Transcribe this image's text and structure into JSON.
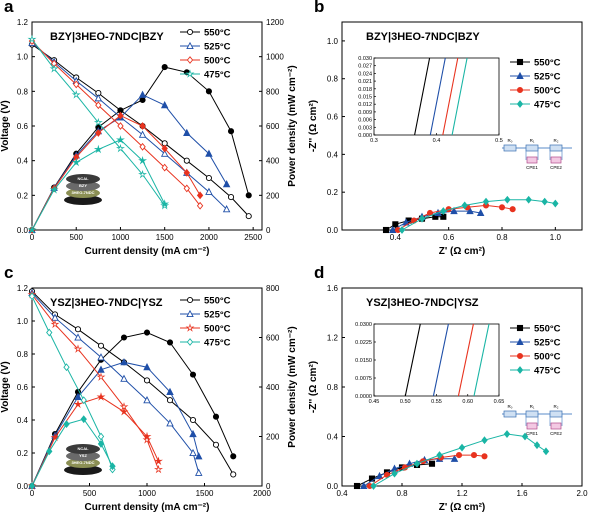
{
  "chart_data": [
    {
      "panel": "a",
      "type": "line",
      "title": "BZY|3HEO-7NDC|BZY",
      "xlabel": "Current density (mA cm⁻²)",
      "ylabel": "Voltage (V)",
      "y2label": "Power density (mW cm⁻²)",
      "xlim": [
        0,
        2600
      ],
      "ylim": [
        0,
        1.2
      ],
      "y2lim": [
        0,
        1200
      ],
      "xticks": [
        "0",
        "500",
        "1000",
        "1500",
        "2000",
        "2500"
      ],
      "yticks": [
        "0.0",
        "0.2",
        "0.4",
        "0.6",
        "0.8",
        "1.0",
        "1.2"
      ],
      "y2ticks": [
        "0",
        "200",
        "400",
        "600",
        "800",
        "1000",
        "1200"
      ],
      "legend_position": "top-right",
      "inset_labels": [
        "NCAL",
        "BZY",
        "3HEO-7NDC"
      ],
      "series": [
        {
          "name": "550°C",
          "color": "#000000",
          "marker": "circle",
          "voltage": {
            "x": [
              0,
              250,
              500,
              750,
              1000,
              1250,
              1500,
              1750,
              2000,
              2250,
              2450
            ],
            "y": [
              1.07,
              0.98,
              0.88,
              0.79,
              0.69,
              0.6,
              0.5,
              0.4,
              0.3,
              0.19,
              0.08
            ]
          },
          "power": {
            "x": [
              0,
              250,
              500,
              750,
              1000,
              1250,
              1500,
              1750,
              2000,
              2250,
              2450
            ],
            "y": [
              0,
              245,
              440,
              593,
              690,
              750,
              940,
              910,
              800,
              570,
              200
            ]
          }
        },
        {
          "name": "525°C",
          "color": "#1f4fa8",
          "marker": "triangle",
          "voltage": {
            "x": [
              0,
              250,
              500,
              750,
              1000,
              1250,
              1500,
              1750,
              2000,
              2200
            ],
            "y": [
              1.08,
              0.97,
              0.86,
              0.76,
              0.65,
              0.55,
              0.44,
              0.33,
              0.22,
              0.12
            ]
          },
          "power": {
            "x": [
              0,
              250,
              500,
              750,
              1000,
              1250,
              1500,
              1750,
              2000,
              2200
            ],
            "y": [
              0,
              243,
              430,
              570,
              650,
              780,
              720,
              560,
              440,
              264
            ]
          }
        },
        {
          "name": "500°C",
          "color": "#e8331f",
          "marker": "diamond",
          "voltage": {
            "x": [
              0,
              250,
              500,
              750,
              1000,
              1250,
              1500,
              1750,
              1900
            ],
            "y": [
              1.09,
              0.96,
              0.84,
              0.72,
              0.6,
              0.48,
              0.36,
              0.24,
              0.14
            ]
          },
          "power": {
            "x": [
              0,
              250,
              500,
              750,
              1000,
              1250,
              1500,
              1750,
              1900
            ],
            "y": [
              0,
              240,
              420,
              560,
              660,
              600,
              470,
              330,
              200
            ]
          }
        },
        {
          "name": "475°C",
          "color": "#1ab5a5",
          "marker": "star",
          "voltage": {
            "x": [
              0,
              250,
              500,
              750,
              1000,
              1250,
              1500
            ],
            "y": [
              1.1,
              0.93,
              0.78,
              0.62,
              0.47,
              0.32,
              0.14
            ]
          },
          "power": {
            "x": [
              0,
              250,
              500,
              750,
              1000,
              1250,
              1500
            ],
            "y": [
              0,
              232,
              390,
              465,
              520,
              400,
              150
            ]
          }
        }
      ]
    },
    {
      "panel": "b",
      "type": "scatter",
      "title": "BZY|3HEO-7NDC|BZY",
      "xlabel": "Z' (Ω cm²)",
      "ylabel": "-Z'' (Ω cm²)",
      "xlim": [
        0.2,
        1.1
      ],
      "ylim": [
        0,
        1.1
      ],
      "xticks": [
        "0.4",
        "0.6",
        "0.8",
        "1.0"
      ],
      "yticks": [
        "0.0",
        "0.2",
        "0.4",
        "0.6",
        "0.8",
        "1.0"
      ],
      "legend_position": "right",
      "inset": {
        "xlim": [
          0.3,
          0.5
        ],
        "ylim": [
          0,
          0.03
        ],
        "xticks": [
          "0.3",
          "0.4",
          "0.5"
        ],
        "yticks": [
          "0.000",
          "0.003",
          "0.006",
          "0.009",
          "0.012",
          "0.015",
          "0.018",
          "0.021",
          "0.024",
          "0.027",
          "0.030"
        ],
        "intercepts": [
          0.365,
          0.39,
          0.41,
          0.425
        ]
      },
      "circuit_labels": [
        "R₀",
        "R₁",
        "R₂",
        "CPE1",
        "CPE2"
      ],
      "series": [
        {
          "name": "550°C",
          "color": "#000000",
          "marker": "square",
          "x": [
            0.365,
            0.4,
            0.45,
            0.5,
            0.55,
            0.58
          ],
          "y": [
            0,
            0.03,
            0.05,
            0.06,
            0.07,
            0.07
          ]
        },
        {
          "name": "525°C",
          "color": "#1f4fa8",
          "marker": "triangle",
          "x": [
            0.39,
            0.44,
            0.5,
            0.56,
            0.62,
            0.68,
            0.72
          ],
          "y": [
            0,
            0.04,
            0.07,
            0.09,
            0.1,
            0.1,
            0.09
          ]
        },
        {
          "name": "500°C",
          "color": "#e8331f",
          "marker": "circle",
          "x": [
            0.41,
            0.47,
            0.53,
            0.6,
            0.67,
            0.74,
            0.8,
            0.84
          ],
          "y": [
            0,
            0.05,
            0.09,
            0.11,
            0.12,
            0.13,
            0.12,
            0.11
          ]
        },
        {
          "name": "475°C",
          "color": "#1ab5a5",
          "marker": "diamond",
          "x": [
            0.425,
            0.5,
            0.58,
            0.66,
            0.74,
            0.82,
            0.9,
            0.96,
            1.0
          ],
          "y": [
            0,
            0.06,
            0.1,
            0.13,
            0.15,
            0.16,
            0.16,
            0.15,
            0.14
          ]
        }
      ]
    },
    {
      "panel": "c",
      "type": "line",
      "title": "YSZ|3HEO-7NDC|YSZ",
      "xlabel": "Current density (mA cm⁻²)",
      "ylabel": "Voltage (V)",
      "y2label": "Power density (mW cm⁻²)",
      "xlim": [
        0,
        2000
      ],
      "ylim": [
        0,
        1.2
      ],
      "y2lim": [
        0,
        800
      ],
      "xticks": [
        "0",
        "500",
        "1000",
        "1500",
        "2000"
      ],
      "yticks": [
        "0.0",
        "0.2",
        "0.4",
        "0.6",
        "0.8",
        "1.0",
        "1.2"
      ],
      "y2ticks": [
        "0",
        "200",
        "400",
        "600",
        "800"
      ],
      "legend_position": "top-right",
      "inset_labels": [
        "NCAL",
        "YSZ",
        "3HEO-7NDC"
      ],
      "series": [
        {
          "name": "550°C",
          "color": "#000000",
          "marker": "circle",
          "voltage": {
            "x": [
              0,
              200,
              400,
              600,
              800,
              1000,
              1200,
              1400,
              1600,
              1750
            ],
            "y": [
              1.18,
              1.04,
              0.95,
              0.85,
              0.75,
              0.64,
              0.52,
              0.4,
              0.25,
              0.07
            ]
          },
          "power": {
            "x": [
              0,
              200,
              400,
              600,
              800,
              1000,
              1200,
              1400,
              1600,
              1750
            ],
            "y": [
              0,
              210,
              380,
              510,
              600,
              620,
              580,
              450,
              280,
              120
            ]
          }
        },
        {
          "name": "525°C",
          "color": "#1f4fa8",
          "marker": "triangle",
          "voltage": {
            "x": [
              0,
              200,
              400,
              600,
              800,
              1000,
              1200,
              1400,
              1450
            ],
            "y": [
              1.17,
              1.02,
              0.9,
              0.78,
              0.65,
              0.52,
              0.38,
              0.2,
              0.08
            ]
          },
          "power": {
            "x": [
              0,
              200,
              400,
              600,
              800,
              1000,
              1200,
              1400,
              1450
            ],
            "y": [
              0,
              204,
              360,
              470,
              500,
              480,
              380,
              210,
              120
            ]
          }
        },
        {
          "name": "500°C",
          "color": "#e8331f",
          "marker": "star",
          "voltage": {
            "x": [
              0,
              200,
              400,
              600,
              800,
              1000,
              1100
            ],
            "y": [
              1.16,
              0.98,
              0.83,
              0.66,
              0.48,
              0.28,
              0.1
            ]
          },
          "power": {
            "x": [
              0,
              200,
              400,
              600,
              800,
              1000,
              1100
            ],
            "y": [
              0,
              196,
              330,
              360,
              300,
              200,
              100
            ]
          }
        },
        {
          "name": "475°C",
          "color": "#1ab5a5",
          "marker": "diamond",
          "voltage": {
            "x": [
              0,
              150,
              300,
              450,
              600,
              700
            ],
            "y": [
              1.15,
              0.93,
              0.72,
              0.52,
              0.3,
              0.1
            ]
          },
          "power": {
            "x": [
              0,
              150,
              300,
              450,
              600,
              700
            ],
            "y": [
              0,
              140,
              250,
              270,
              170,
              80
            ]
          }
        }
      ]
    },
    {
      "panel": "d",
      "type": "scatter",
      "title": "YSZ|3HEO-7NDC|YSZ",
      "xlabel": "Z' (Ω cm²)",
      "ylabel": "-Z'' (Ω cm²)",
      "xlim": [
        0.4,
        2.0
      ],
      "ylim": [
        0,
        1.6
      ],
      "xticks": [
        "0.4",
        "0.8",
        "1.2",
        "1.6",
        "2.0"
      ],
      "yticks": [
        "0.0",
        "0.4",
        "0.8",
        "1.2",
        "1.6"
      ],
      "legend_position": "right",
      "inset": {
        "xlim": [
          0.45,
          0.65
        ],
        "ylim": [
          0,
          0.03
        ],
        "xticks": [
          "0.45",
          "0.50",
          "0.55",
          "0.60",
          "0.65"
        ],
        "yticks": [
          "0.0000",
          "0.0075",
          "0.0150",
          "0.0225",
          "0.0300"
        ],
        "intercepts": [
          0.5,
          0.545,
          0.585,
          0.61
        ]
      },
      "circuit_labels": [
        "R₀",
        "R₁",
        "R₂",
        "CPE1",
        "CPE2"
      ],
      "series": [
        {
          "name": "550°C",
          "color": "#000000",
          "marker": "square",
          "x": [
            0.5,
            0.6,
            0.7,
            0.8,
            0.9,
            1.0
          ],
          "y": [
            0,
            0.06,
            0.11,
            0.15,
            0.17,
            0.18
          ]
        },
        {
          "name": "525°C",
          "color": "#1f4fa8",
          "marker": "triangle",
          "x": [
            0.545,
            0.65,
            0.75,
            0.85,
            0.95,
            1.05,
            1.15
          ],
          "y": [
            0,
            0.08,
            0.14,
            0.18,
            0.21,
            0.22,
            0.22
          ]
        },
        {
          "name": "500°C",
          "color": "#e8331f",
          "marker": "circle",
          "x": [
            0.585,
            0.7,
            0.82,
            0.94,
            1.06,
            1.18,
            1.28,
            1.35
          ],
          "y": [
            0,
            0.09,
            0.15,
            0.2,
            0.23,
            0.25,
            0.25,
            0.24
          ]
        },
        {
          "name": "475°C",
          "color": "#1ab5a5",
          "marker": "diamond",
          "x": [
            0.61,
            0.75,
            0.9,
            1.05,
            1.2,
            1.35,
            1.5,
            1.62,
            1.7,
            1.76
          ],
          "y": [
            0,
            0.1,
            0.18,
            0.25,
            0.31,
            0.37,
            0.42,
            0.4,
            0.33,
            0.28
          ]
        }
      ]
    }
  ]
}
